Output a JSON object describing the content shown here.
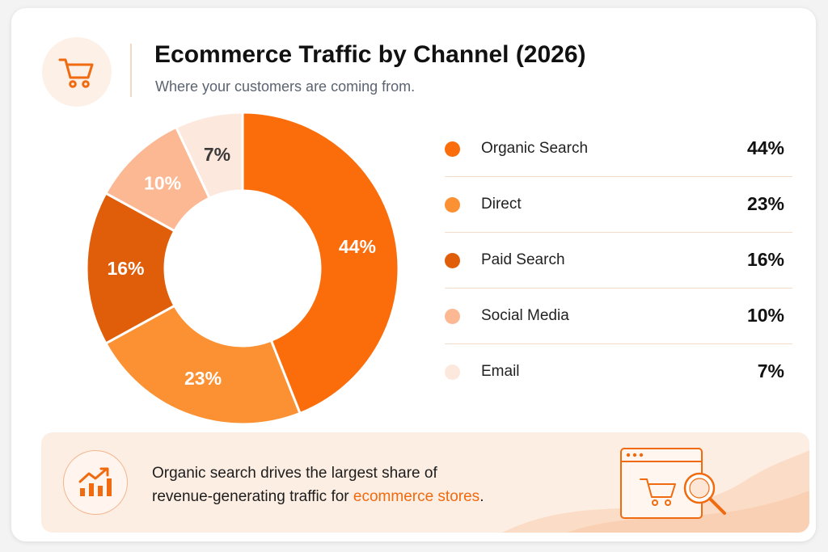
{
  "header": {
    "title": "Ecommerce Traffic by Channel (2026)",
    "subtitle": "Where your customers are coming from.",
    "icon": "shopping-cart-icon"
  },
  "chart_data": {
    "type": "pie",
    "variant": "donut",
    "title": "Ecommerce Traffic by Channel (2026)",
    "subtitle": "Where your customers are coming from.",
    "categories": [
      "Organic Search",
      "Direct",
      "Paid Search",
      "Social Media",
      "Email"
    ],
    "values": [
      44,
      23,
      16,
      10,
      7
    ],
    "labels": [
      "44%",
      "23%",
      "16%",
      "10%",
      "7%"
    ],
    "colors": [
      "#fb6c0b",
      "#fb9133",
      "#e05e0a",
      "#fcb893",
      "#fce8dc"
    ],
    "label_colors": [
      "#ffffff",
      "#ffffff",
      "#ffffff",
      "#ffffff",
      "#3a3a3a"
    ],
    "legend_position": "right"
  },
  "legend": [
    {
      "label": "Organic Search",
      "value": "44%",
      "color": "#fb6c0b"
    },
    {
      "label": "Direct",
      "value": "23%",
      "color": "#fb9133"
    },
    {
      "label": "Paid Search",
      "value": "16%",
      "color": "#e05e0a"
    },
    {
      "label": "Social Media",
      "value": "10%",
      "color": "#fcb893"
    },
    {
      "label": "Email",
      "value": "7%",
      "color": "#fce8dc"
    }
  ],
  "insight": {
    "line1": "Organic search drives the largest share of",
    "line2_prefix": "revenue-generating traffic for ",
    "highlight": "ecommerce stores",
    "suffix": ".",
    "icon": "growth-chart-icon",
    "illustration": "browser-cart-search-illustration",
    "accent": "#f06a0f"
  }
}
